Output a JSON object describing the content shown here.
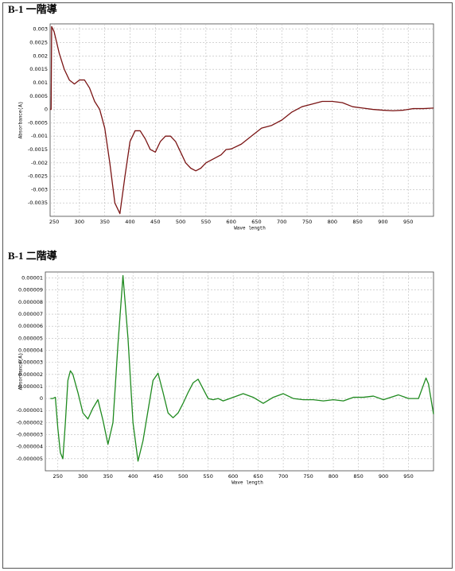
{
  "chart_data": [
    {
      "type": "line",
      "title": "B-1 一階導",
      "xlabel": "Wave length",
      "ylabel": "Absorbance(A)",
      "color": "#7a1414",
      "grid": true,
      "xlim": [
        242,
        1000
      ],
      "ylim": [
        -0.004,
        0.0032
      ],
      "xticks": [
        250,
        300,
        350,
        400,
        450,
        500,
        550,
        600,
        650,
        700,
        750,
        800,
        850,
        900,
        950
      ],
      "yticks": [
        0.003,
        0.0025,
        0.002,
        0.0015,
        0.001,
        0.0005,
        0,
        -0.0005,
        -0.001,
        -0.0015,
        -0.002,
        -0.0025,
        -0.003,
        -0.0035
      ],
      "x": [
        242,
        244,
        245,
        250,
        260,
        270,
        280,
        290,
        300,
        310,
        320,
        330,
        340,
        350,
        360,
        370,
        380,
        390,
        400,
        410,
        420,
        430,
        440,
        450,
        460,
        470,
        480,
        490,
        500,
        510,
        520,
        530,
        540,
        550,
        560,
        570,
        580,
        590,
        600,
        620,
        640,
        660,
        680,
        700,
        720,
        740,
        760,
        780,
        800,
        820,
        840,
        860,
        880,
        900,
        920,
        940,
        960,
        980,
        1000
      ],
      "values": [
        0,
        0,
        0.0031,
        0.0029,
        0.0021,
        0.0015,
        0.0011,
        0.00095,
        0.0011,
        0.0011,
        0.0008,
        0.0003,
        0,
        -0.0007,
        -0.002,
        -0.0035,
        -0.0039,
        -0.0025,
        -0.0012,
        -0.0008,
        -0.0008,
        -0.0011,
        -0.0015,
        -0.0016,
        -0.0012,
        -0.001,
        -0.001,
        -0.0012,
        -0.0016,
        -0.002,
        -0.0022,
        -0.0023,
        -0.0022,
        -0.002,
        -0.0019,
        -0.0018,
        -0.0017,
        -0.0015,
        -0.00148,
        -0.0013,
        -0.001,
        -0.0007,
        -0.0006,
        -0.0004,
        -0.0001,
        0.0001,
        0.0002,
        0.0003,
        0.0003,
        0.00025,
        0.0001,
        5e-05,
        0,
        -3e-05,
        -5e-05,
        -3e-05,
        3e-05,
        3e-05,
        5e-05
      ]
    },
    {
      "type": "line",
      "title": "B-1 二階導",
      "xlabel": "Wave length",
      "ylabel": "Absorbance(A)",
      "color": "#1f8a1f",
      "grid": true,
      "xlim": [
        225,
        1000
      ],
      "ylim": [
        -6e-06,
        1.05e-05
      ],
      "xticks": [
        250,
        300,
        350,
        400,
        450,
        500,
        550,
        600,
        650,
        700,
        750,
        800,
        850,
        900,
        950
      ],
      "yticks": [
        1e-05,
        9e-06,
        8e-06,
        7e-06,
        6e-06,
        5e-06,
        4e-06,
        3e-06,
        2e-06,
        1e-06,
        0,
        -1e-06,
        -2e-06,
        -3e-06,
        -4e-06,
        -5e-06
      ],
      "x": [
        235,
        240,
        245,
        250,
        255,
        260,
        265,
        270,
        275,
        280,
        290,
        300,
        310,
        320,
        330,
        340,
        350,
        360,
        370,
        380,
        390,
        400,
        410,
        420,
        430,
        440,
        450,
        460,
        470,
        480,
        490,
        500,
        510,
        520,
        530,
        540,
        550,
        560,
        570,
        580,
        600,
        620,
        640,
        660,
        680,
        700,
        720,
        740,
        760,
        780,
        800,
        820,
        840,
        860,
        880,
        900,
        930,
        950,
        970,
        985,
        990,
        1000
      ],
      "values": [
        0,
        0,
        1e-07,
        -2.5e-06,
        -4.5e-06,
        -5e-06,
        -2e-06,
        1.5e-06,
        2.3e-06,
        2e-06,
        5e-07,
        -1.2e-06,
        -1.7e-06,
        -8e-07,
        -1e-07,
        -1.8e-06,
        -3.8e-06,
        -2e-06,
        4.5e-06,
        1.02e-05,
        5e-06,
        -2e-06,
        -5.2e-06,
        -3.5e-06,
        -1e-06,
        1.5e-06,
        2.1e-06,
        5e-07,
        -1.2e-06,
        -1.6e-06,
        -1.2e-06,
        -4e-07,
        5e-07,
        1.3e-06,
        1.6e-06,
        8e-07,
        0,
        -1e-07,
        0,
        -2e-07,
        1e-07,
        4e-07,
        1e-07,
        -4e-07,
        1e-07,
        4e-07,
        0,
        -1e-07,
        -1e-07,
        -2e-07,
        -1e-07,
        -2e-07,
        1e-07,
        1e-07,
        2e-07,
        -1e-07,
        3e-07,
        0,
        0,
        1.7e-06,
        1.2e-06,
        -1.3e-06
      ]
    }
  ]
}
